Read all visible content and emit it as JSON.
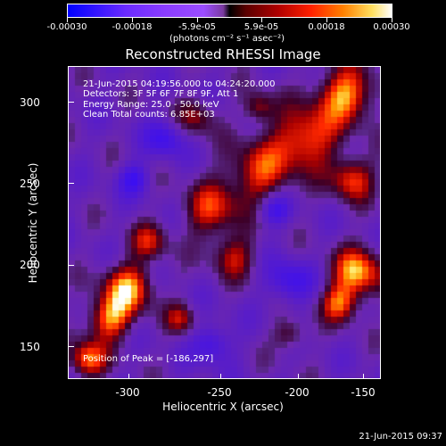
{
  "colorbar": {
    "tick_labels": [
      "-0.00030",
      "-0.00018",
      "-5.9e-05",
      "5.9e-05",
      "0.00018",
      "0.00030"
    ],
    "units": "(photons cm⁻² s⁻¹ asec⁻²)"
  },
  "title": "Reconstructed RHESSI Image",
  "annotations": {
    "time_range": "21-Jun-2015 04:19:56.000 to 04:24:20.000",
    "detectors": "Detectors: 3F 5F 6F 7F 8F 9F, Att 1",
    "energy_range": "Energy Range: 25.0 - 50.0 keV",
    "method": "Clean      Total counts: 6.85E+03",
    "peak": "Position of Peak = [-186,297]"
  },
  "x_axis": {
    "title": "Heliocentric X (arcsec)",
    "ticks": [
      "-300",
      "-250",
      "-200",
      "-150"
    ]
  },
  "y_axis": {
    "title": "Heliocentric Y (arcsec)",
    "ticks": [
      "300",
      "250",
      "200",
      "150"
    ]
  },
  "timestamp": "21-Jun-2015 09:37",
  "colors": {
    "background": "#000000",
    "text": "#ffffff"
  }
}
